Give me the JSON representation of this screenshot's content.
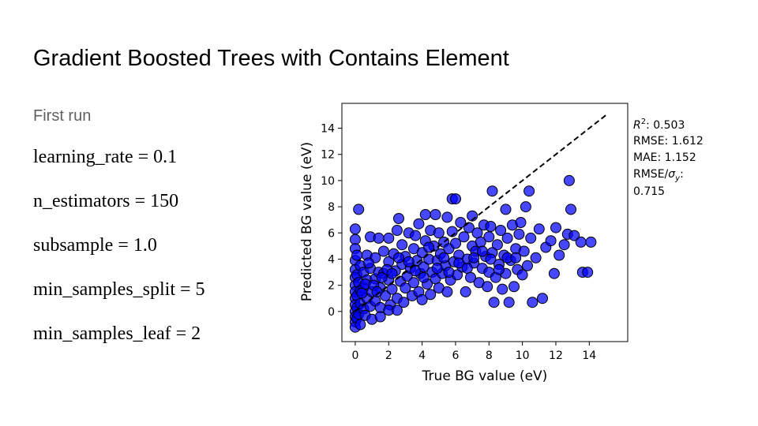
{
  "slide": {
    "title": "Gradient Boosted Trees with Contains Element",
    "subtitle": "First run",
    "params": [
      "learning_rate = 0.1",
      "n_estimators = 150",
      "subsample = 1.0",
      "min_samples_split = 5",
      "min_samples_leaf = 2"
    ]
  },
  "chart_data": {
    "type": "scatter",
    "xlabel": "True BG value (eV)",
    "ylabel": "Predicted BG value (eV)",
    "xlim": [
      -0.8,
      16.3
    ],
    "ylim": [
      -2.3,
      15.9
    ],
    "xticks": [
      0,
      2,
      4,
      6,
      8,
      10,
      12,
      14
    ],
    "yticks": [
      0,
      2,
      4,
      6,
      8,
      10,
      12,
      14
    ],
    "reference_line": {
      "style": "dashed",
      "color": "#000000",
      "from": [
        0,
        0
      ],
      "to": [
        15,
        15
      ]
    },
    "marker_color": "#0000ff",
    "marker_edge_color": "#000000",
    "metrics": {
      "r2_label": "R",
      "r2_sup": "2",
      "r2_value": ": 0.503",
      "rmse": "RMSE: 1.612",
      "mae": "MAE: 1.152",
      "rmse_sigma_prefix": "RMSE/",
      "rmse_sigma_symbol": "σ",
      "rmse_sigma_sub": "y",
      "rmse_sigma_suffix": ":",
      "rmse_sigma_value": "0.715"
    },
    "points": [
      [
        0,
        6.3
      ],
      [
        0.2,
        7.8
      ],
      [
        0,
        5.5
      ],
      [
        0,
        4.8
      ],
      [
        0,
        3.9
      ],
      [
        0,
        3.2
      ],
      [
        0,
        2.6
      ],
      [
        0,
        2.0
      ],
      [
        0,
        1.5
      ],
      [
        0,
        1.0
      ],
      [
        0,
        0.5
      ],
      [
        0,
        0
      ],
      [
        0,
        -0.4
      ],
      [
        0,
        -0.8
      ],
      [
        0,
        -1.2
      ],
      [
        0.1,
        4.3
      ],
      [
        0.1,
        2.8
      ],
      [
        0.1,
        1.2
      ],
      [
        0.1,
        -0.5
      ],
      [
        0.1,
        0.3
      ],
      [
        0.2,
        2.2
      ],
      [
        0.2,
        -0.2
      ],
      [
        0.3,
        1.6
      ],
      [
        0.3,
        3.5
      ],
      [
        0.3,
        0.6
      ],
      [
        0.5,
        3.0
      ],
      [
        0.5,
        1.8
      ],
      [
        0.5,
        0.2
      ],
      [
        0.7,
        2.4
      ],
      [
        0.7,
        4.3
      ],
      [
        0.7,
        1.0
      ],
      [
        0.9,
        5.7
      ],
      [
        0.9,
        0.4
      ],
      [
        0.9,
        3.3
      ],
      [
        1.0,
        1.5
      ],
      [
        1.2,
        2.5
      ],
      [
        1.2,
        4.1
      ],
      [
        1.2,
        0.8
      ],
      [
        1.4,
        5.6
      ],
      [
        1.4,
        3.0
      ],
      [
        1.5,
        1.8
      ],
      [
        1.5,
        0.3
      ],
      [
        1.7,
        2.9
      ],
      [
        1.7,
        4.6
      ],
      [
        1.8,
        1.2
      ],
      [
        2.0,
        5.6
      ],
      [
        2.0,
        2.4
      ],
      [
        2.0,
        3.8
      ],
      [
        2.1,
        0.5
      ],
      [
        2.2,
        1.7
      ],
      [
        2.3,
        4.4
      ],
      [
        2.4,
        3.1
      ],
      [
        2.5,
        6.2
      ],
      [
        2.5,
        1.0
      ],
      [
        2.6,
        7.1
      ],
      [
        2.7,
        2.3
      ],
      [
        2.8,
        3.6
      ],
      [
        2.8,
        5.1
      ],
      [
        2.9,
        0.7
      ],
      [
        3.0,
        1.8
      ],
      [
        3.0,
        4.2
      ],
      [
        3.1,
        2.7
      ],
      [
        3.2,
        6.0
      ],
      [
        3.3,
        3.3
      ],
      [
        3.4,
        1.2
      ],
      [
        3.5,
        4.8
      ],
      [
        3.5,
        2.2
      ],
      [
        3.6,
        5.8
      ],
      [
        3.7,
        3.9
      ],
      [
        3.8,
        1.5
      ],
      [
        3.8,
        6.7
      ],
      [
        3.9,
        2.9
      ],
      [
        4.0,
        4.5
      ],
      [
        4.0,
        0.9
      ],
      [
        4.1,
        3.4
      ],
      [
        4.2,
        5.4
      ],
      [
        4.2,
        7.4
      ],
      [
        4.3,
        2.1
      ],
      [
        4.4,
        4.0
      ],
      [
        4.5,
        6.2
      ],
      [
        4.5,
        1.3
      ],
      [
        4.6,
        3.0
      ],
      [
        4.7,
        5.0
      ],
      [
        4.8,
        2.5
      ],
      [
        4.8,
        7.4
      ],
      [
        4.9,
        3.9
      ],
      [
        5.0,
        1.8
      ],
      [
        5.0,
        6.0
      ],
      [
        5.1,
        4.4
      ],
      [
        5.2,
        2.9
      ],
      [
        5.3,
        5.3
      ],
      [
        5.4,
        3.5
      ],
      [
        5.5,
        7.2
      ],
      [
        5.5,
        1.5
      ],
      [
        5.6,
        4.8
      ],
      [
        5.7,
        2.4
      ],
      [
        5.8,
        8.6
      ],
      [
        5.8,
        6.1
      ],
      [
        5.9,
        3.8
      ],
      [
        6.0,
        8.6
      ],
      [
        6.0,
        5.2
      ],
      [
        6.1,
        2.8
      ],
      [
        6.2,
        4.3
      ],
      [
        6.3,
        6.8
      ],
      [
        6.4,
        3.4
      ],
      [
        6.5,
        5.7
      ],
      [
        6.6,
        1.5
      ],
      [
        6.7,
        4.0
      ],
      [
        6.8,
        6.4
      ],
      [
        6.9,
        2.6
      ],
      [
        7.0,
        5.0
      ],
      [
        7.0,
        7.3
      ],
      [
        7.1,
        3.7
      ],
      [
        7.2,
        4.6
      ],
      [
        7.3,
        6.0
      ],
      [
        7.4,
        2.2
      ],
      [
        7.5,
        5.3
      ],
      [
        7.6,
        3.3
      ],
      [
        7.7,
        6.6
      ],
      [
        7.8,
        4.2
      ],
      [
        7.9,
        1.9
      ],
      [
        8.0,
        5.7
      ],
      [
        8.0,
        3.0
      ],
      [
        8.1,
        6.5
      ],
      [
        8.2,
        4.5
      ],
      [
        8.2,
        9.2
      ],
      [
        8.3,
        0.7
      ],
      [
        8.4,
        2.6
      ],
      [
        8.5,
        5.1
      ],
      [
        8.6,
        3.6
      ],
      [
        8.7,
        6.2
      ],
      [
        8.8,
        1.7
      ],
      [
        8.9,
        4.3
      ],
      [
        9.0,
        7.8
      ],
      [
        9.0,
        2.9
      ],
      [
        9.1,
        5.6
      ],
      [
        9.2,
        0.7
      ],
      [
        9.3,
        3.9
      ],
      [
        9.4,
        6.6
      ],
      [
        9.5,
        1.9
      ],
      [
        9.6,
        4.8
      ],
      [
        9.7,
        3.2
      ],
      [
        9.8,
        5.9
      ],
      [
        9.9,
        6.8
      ],
      [
        10.0,
        2.8
      ],
      [
        10.1,
        4.6
      ],
      [
        10.2,
        8.0
      ],
      [
        10.3,
        3.5
      ],
      [
        10.4,
        9.2
      ],
      [
        10.5,
        5.6
      ],
      [
        10.6,
        0.7
      ],
      [
        10.8,
        4.1
      ],
      [
        11.0,
        6.3
      ],
      [
        11.2,
        1.0
      ],
      [
        11.4,
        4.9
      ],
      [
        11.7,
        5.4
      ],
      [
        11.9,
        2.9
      ],
      [
        12.0,
        6.4
      ],
      [
        12.2,
        4.3
      ],
      [
        12.5,
        5.1
      ],
      [
        12.7,
        5.9
      ],
      [
        12.8,
        10.0
      ],
      [
        12.9,
        7.8
      ],
      [
        13.1,
        5.8
      ],
      [
        13.5,
        5.3
      ],
      [
        13.6,
        3.0
      ],
      [
        13.9,
        3.0
      ],
      [
        14.1,
        5.3
      ],
      [
        0.4,
        1.4
      ],
      [
        0.6,
        2.1
      ],
      [
        0.8,
        3.7
      ],
      [
        1.1,
        2.0
      ],
      [
        1.3,
        1.5
      ],
      [
        1.6,
        2.6
      ],
      [
        1.9,
        3.2
      ],
      [
        2.2,
        2.9
      ],
      [
        2.6,
        4.1
      ],
      [
        3.2,
        3.8
      ],
      [
        3.6,
        3.1
      ],
      [
        4.1,
        2.6
      ],
      [
        4.4,
        4.9
      ],
      [
        4.9,
        3.3
      ],
      [
        5.3,
        4.1
      ],
      [
        5.6,
        3.0
      ],
      [
        6.2,
        3.7
      ],
      [
        6.7,
        3.3
      ],
      [
        7.1,
        4.1
      ],
      [
        7.6,
        4.6
      ],
      [
        8.1,
        4.0
      ],
      [
        8.6,
        3.2
      ],
      [
        9.1,
        4.1
      ],
      [
        9.6,
        4.1
      ],
      [
        0.3,
        -1.0
      ],
      [
        0.6,
        -0.3
      ],
      [
        1.0,
        -0.6
      ],
      [
        1.5,
        -0.4
      ],
      [
        2.0,
        0.1
      ],
      [
        2.5,
        0.1
      ]
    ]
  }
}
